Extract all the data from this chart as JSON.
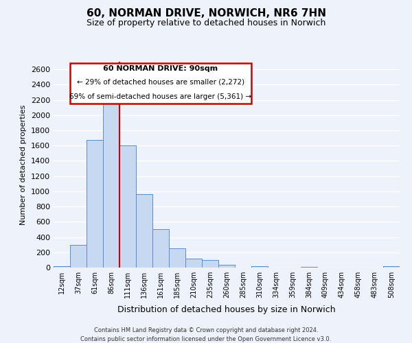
{
  "title": "60, NORMAN DRIVE, NORWICH, NR6 7HN",
  "subtitle": "Size of property relative to detached houses in Norwich",
  "xlabel": "Distribution of detached houses by size in Norwich",
  "ylabel": "Number of detached properties",
  "bar_labels": [
    "12sqm",
    "37sqm",
    "61sqm",
    "86sqm",
    "111sqm",
    "136sqm",
    "161sqm",
    "185sqm",
    "210sqm",
    "235sqm",
    "260sqm",
    "285sqm",
    "310sqm",
    "334sqm",
    "359sqm",
    "384sqm",
    "409sqm",
    "434sqm",
    "458sqm",
    "483sqm",
    "508sqm"
  ],
  "bar_values": [
    20,
    295,
    1670,
    2150,
    1600,
    960,
    505,
    255,
    120,
    95,
    35,
    0,
    15,
    0,
    0,
    10,
    0,
    0,
    0,
    0,
    20
  ],
  "bar_color": "#c6d9f0",
  "bar_edge_color": "#5b8cc8",
  "vline_color": "#cc0000",
  "vline_index": 3.5,
  "ylim": [
    0,
    2700
  ],
  "yticks": [
    0,
    200,
    400,
    600,
    800,
    1000,
    1200,
    1400,
    1600,
    1800,
    2000,
    2200,
    2400,
    2600
  ],
  "annotation_title": "60 NORMAN DRIVE: 90sqm",
  "annotation_line1": "← 29% of detached houses are smaller (2,272)",
  "annotation_line2": "69% of semi-detached houses are larger (5,361) →",
  "annotation_box_color": "#cc0000",
  "footer1": "Contains HM Land Registry data © Crown copyright and database right 2024.",
  "footer2": "Contains public sector information licensed under the Open Government Licence v3.0.",
  "bg_color": "#eef2fb",
  "grid_color": "#ffffff"
}
